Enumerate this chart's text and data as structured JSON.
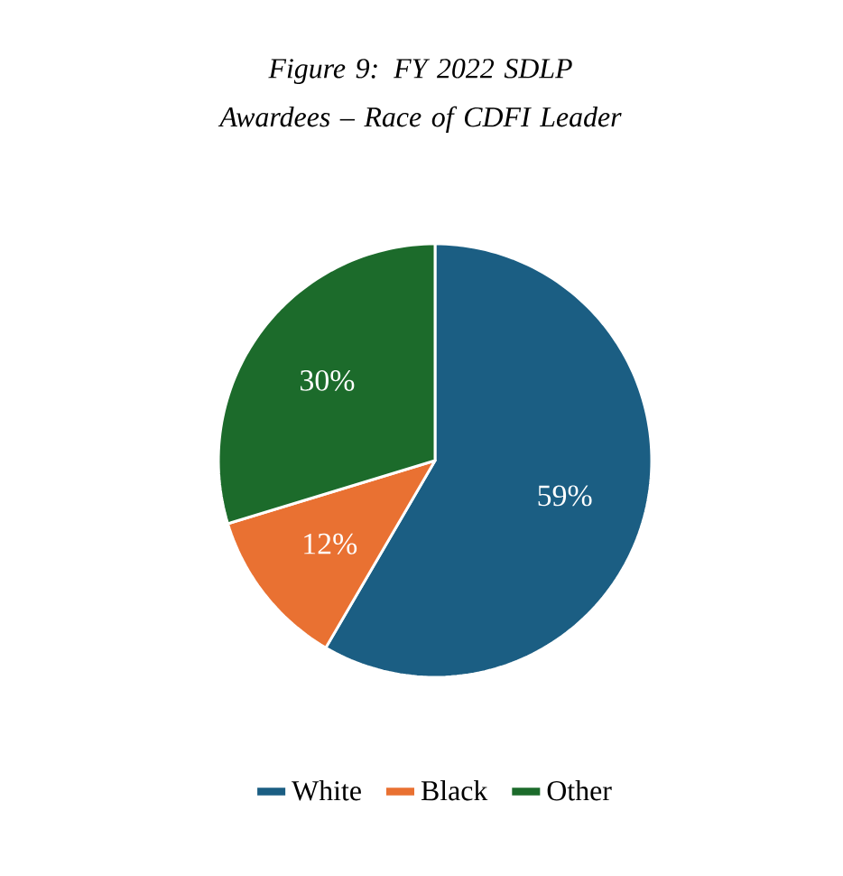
{
  "chart_data": {
    "type": "pie",
    "title": "Figure 9: FY 2022 SDLP Awardees – Race of CDFI Leader",
    "categories": [
      "White",
      "Black",
      "Other"
    ],
    "values": [
      59,
      12,
      30
    ],
    "colors": [
      "#1b5e83",
      "#e97132",
      "#1c6b2b"
    ],
    "value_labels": [
      "59%",
      "12%",
      "30%"
    ],
    "legend": "bottom"
  }
}
